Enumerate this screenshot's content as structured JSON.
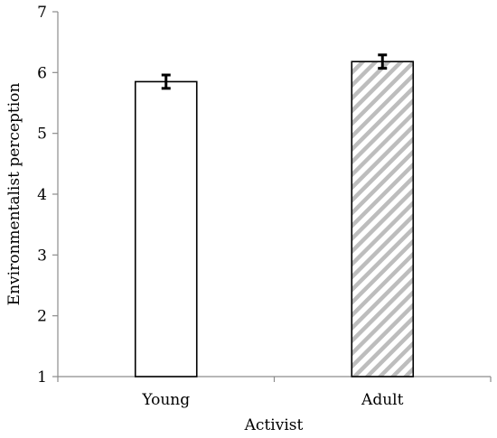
{
  "chart_data": {
    "type": "bar",
    "title": "",
    "xlabel": "Activist",
    "ylabel": "Environmentalist perception",
    "categories": [
      "Young",
      "Adult"
    ],
    "values": [
      5.85,
      6.18
    ],
    "errors": [
      0.11,
      0.11
    ],
    "ylim": [
      1,
      7
    ],
    "yticks": [
      "1",
      "2",
      "3",
      "4",
      "5",
      "6",
      "7"
    ],
    "grid": false,
    "legend": "none",
    "bar_styles": [
      "solid-white",
      "diagonal-hatch-gray"
    ],
    "colors": {
      "bar_fill": "#ffffff",
      "bar_stroke": "#000000",
      "hatch": "#bdbdbd",
      "axis": "#8c8c8c",
      "error": "#000000"
    }
  }
}
